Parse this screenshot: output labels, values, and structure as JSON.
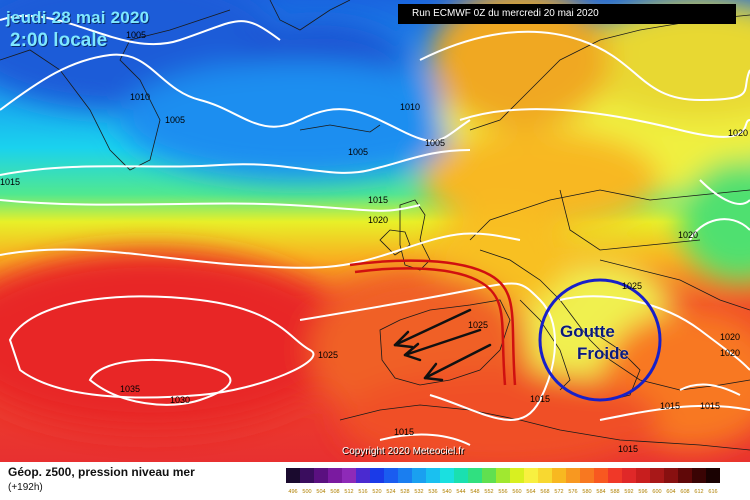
{
  "header": {
    "date": "jeudi 28 mai 2020",
    "time": "2:00 locale",
    "run": "Run ECMWF 0Z du mercredi 20 mai 2020"
  },
  "annotation": {
    "line1": "Goutte",
    "line2": "Froide"
  },
  "isobar_labels": [
    "1005",
    "1010",
    "1005",
    "1010",
    "1005",
    "1005",
    "1015",
    "1015",
    "1020",
    "1020",
    "1025",
    "1025",
    "1025",
    "1030",
    "1035",
    "1020",
    "1015",
    "1015",
    "1020",
    "1020",
    "1015",
    "1015",
    "1015"
  ],
  "copyright": "Copyright 2020 Meteociel.fr",
  "legend": {
    "title": "Géop. z500, pression niveau mer",
    "subtitle": "(+192h)",
    "scale_values": [
      "496",
      "500",
      "504",
      "508",
      "512",
      "516",
      "520",
      "524",
      "528",
      "532",
      "536",
      "540",
      "544",
      "548",
      "552",
      "556",
      "560",
      "564",
      "568",
      "572",
      "576",
      "580",
      "584",
      "588",
      "592",
      "596",
      "600",
      "604",
      "608",
      "612",
      "616"
    ],
    "scale_colors": [
      "#1a0a2e",
      "#3a0d5e",
      "#5a1080",
      "#7a1aa0",
      "#8e2ab8",
      "#4a2ad0",
      "#1a3ae8",
      "#1a5cf0",
      "#1a7ef0",
      "#1aa0f0",
      "#1ac0f0",
      "#1ae0e0",
      "#1ae0b0",
      "#30e080",
      "#60e050",
      "#a0e830",
      "#d8f020",
      "#f8f040",
      "#f8d830",
      "#f8b820",
      "#f89820",
      "#f87820",
      "#f85820",
      "#f03828",
      "#e02828",
      "#c81e1e",
      "#a81818",
      "#881010",
      "#600808",
      "#3a0404",
      "#1a0202"
    ]
  },
  "colors": {
    "contour": "#ffffff",
    "circle": "#1820c8",
    "front": "#d01010",
    "arrow": "#111111"
  }
}
